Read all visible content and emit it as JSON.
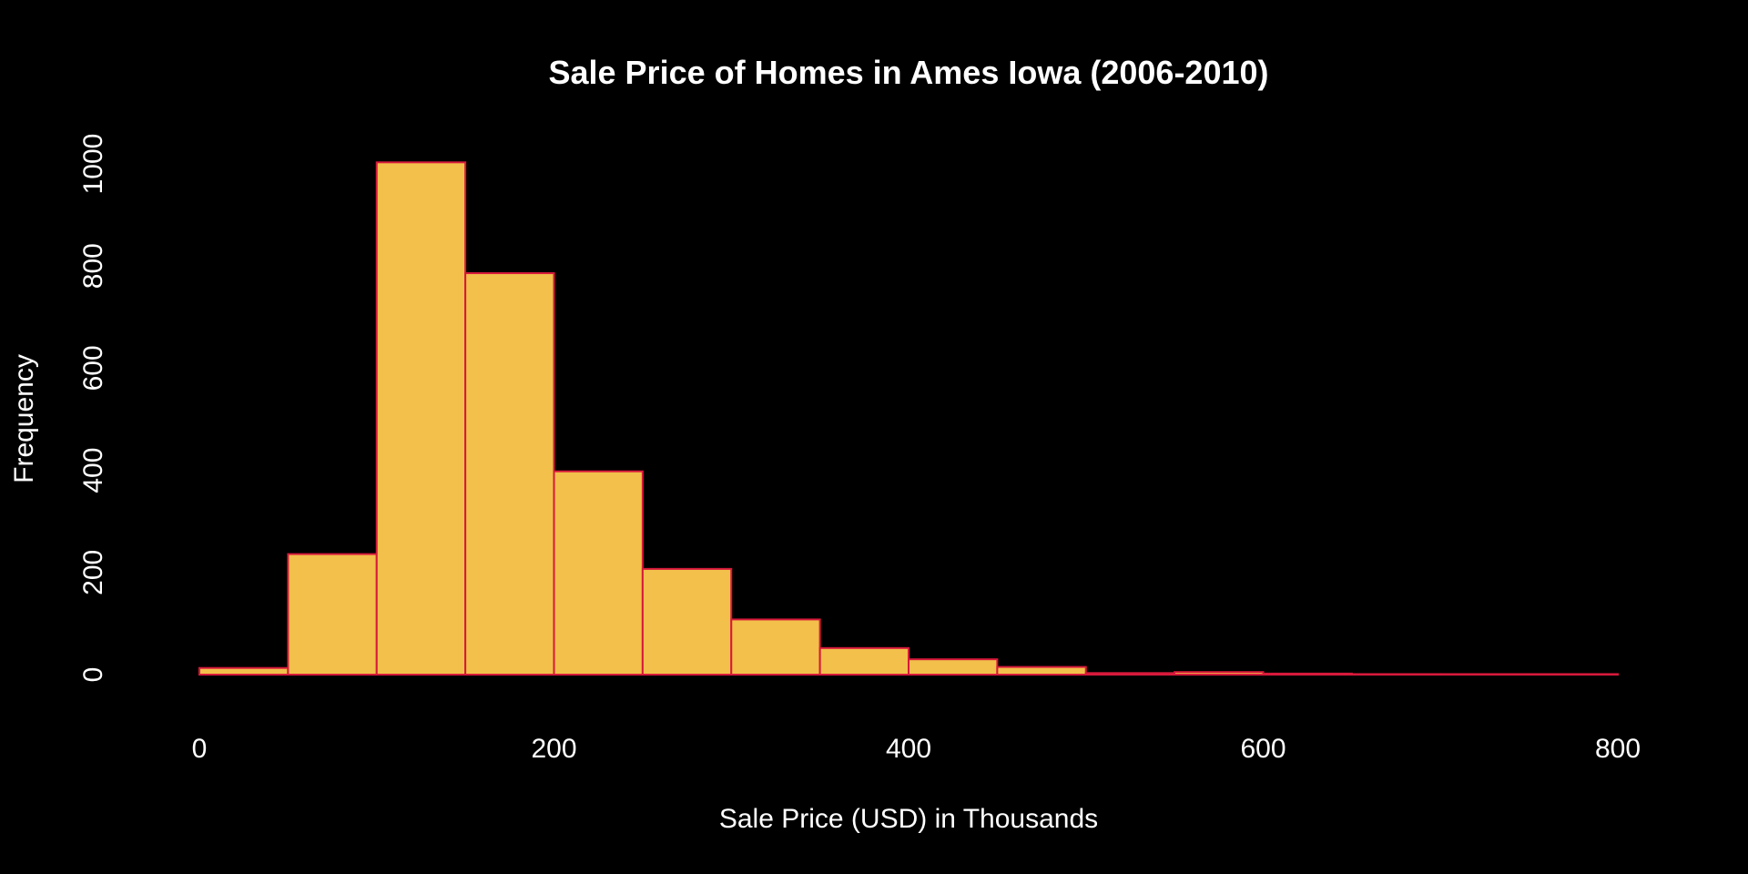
{
  "chart_data": {
    "type": "bar",
    "title": "Sale Price of Homes in Ames Iowa (2006-2010)",
    "xlabel": "Sale Price (USD) in Thousands",
    "ylabel": "Frequency",
    "bin_edges": [
      0,
      50,
      100,
      150,
      200,
      250,
      300,
      350,
      400,
      450,
      500,
      550,
      600,
      650,
      700,
      750,
      800
    ],
    "values": [
      13,
      236,
      1003,
      786,
      398,
      207,
      108,
      52,
      30,
      15,
      3,
      5,
      2,
      1,
      1,
      1
    ],
    "xlim": [
      0,
      800
    ],
    "ylim": [
      0,
      1000
    ],
    "x_ticks": [
      "0",
      "200",
      "400",
      "600",
      "800"
    ],
    "y_ticks": [
      "0",
      "200",
      "400",
      "600",
      "800",
      "1000"
    ],
    "grid": false,
    "legend": "none",
    "colors": {
      "background": "#000000",
      "bar_fill": "#f2c04b",
      "bar_edge": "#d7193b",
      "text": "#ffffff"
    }
  }
}
